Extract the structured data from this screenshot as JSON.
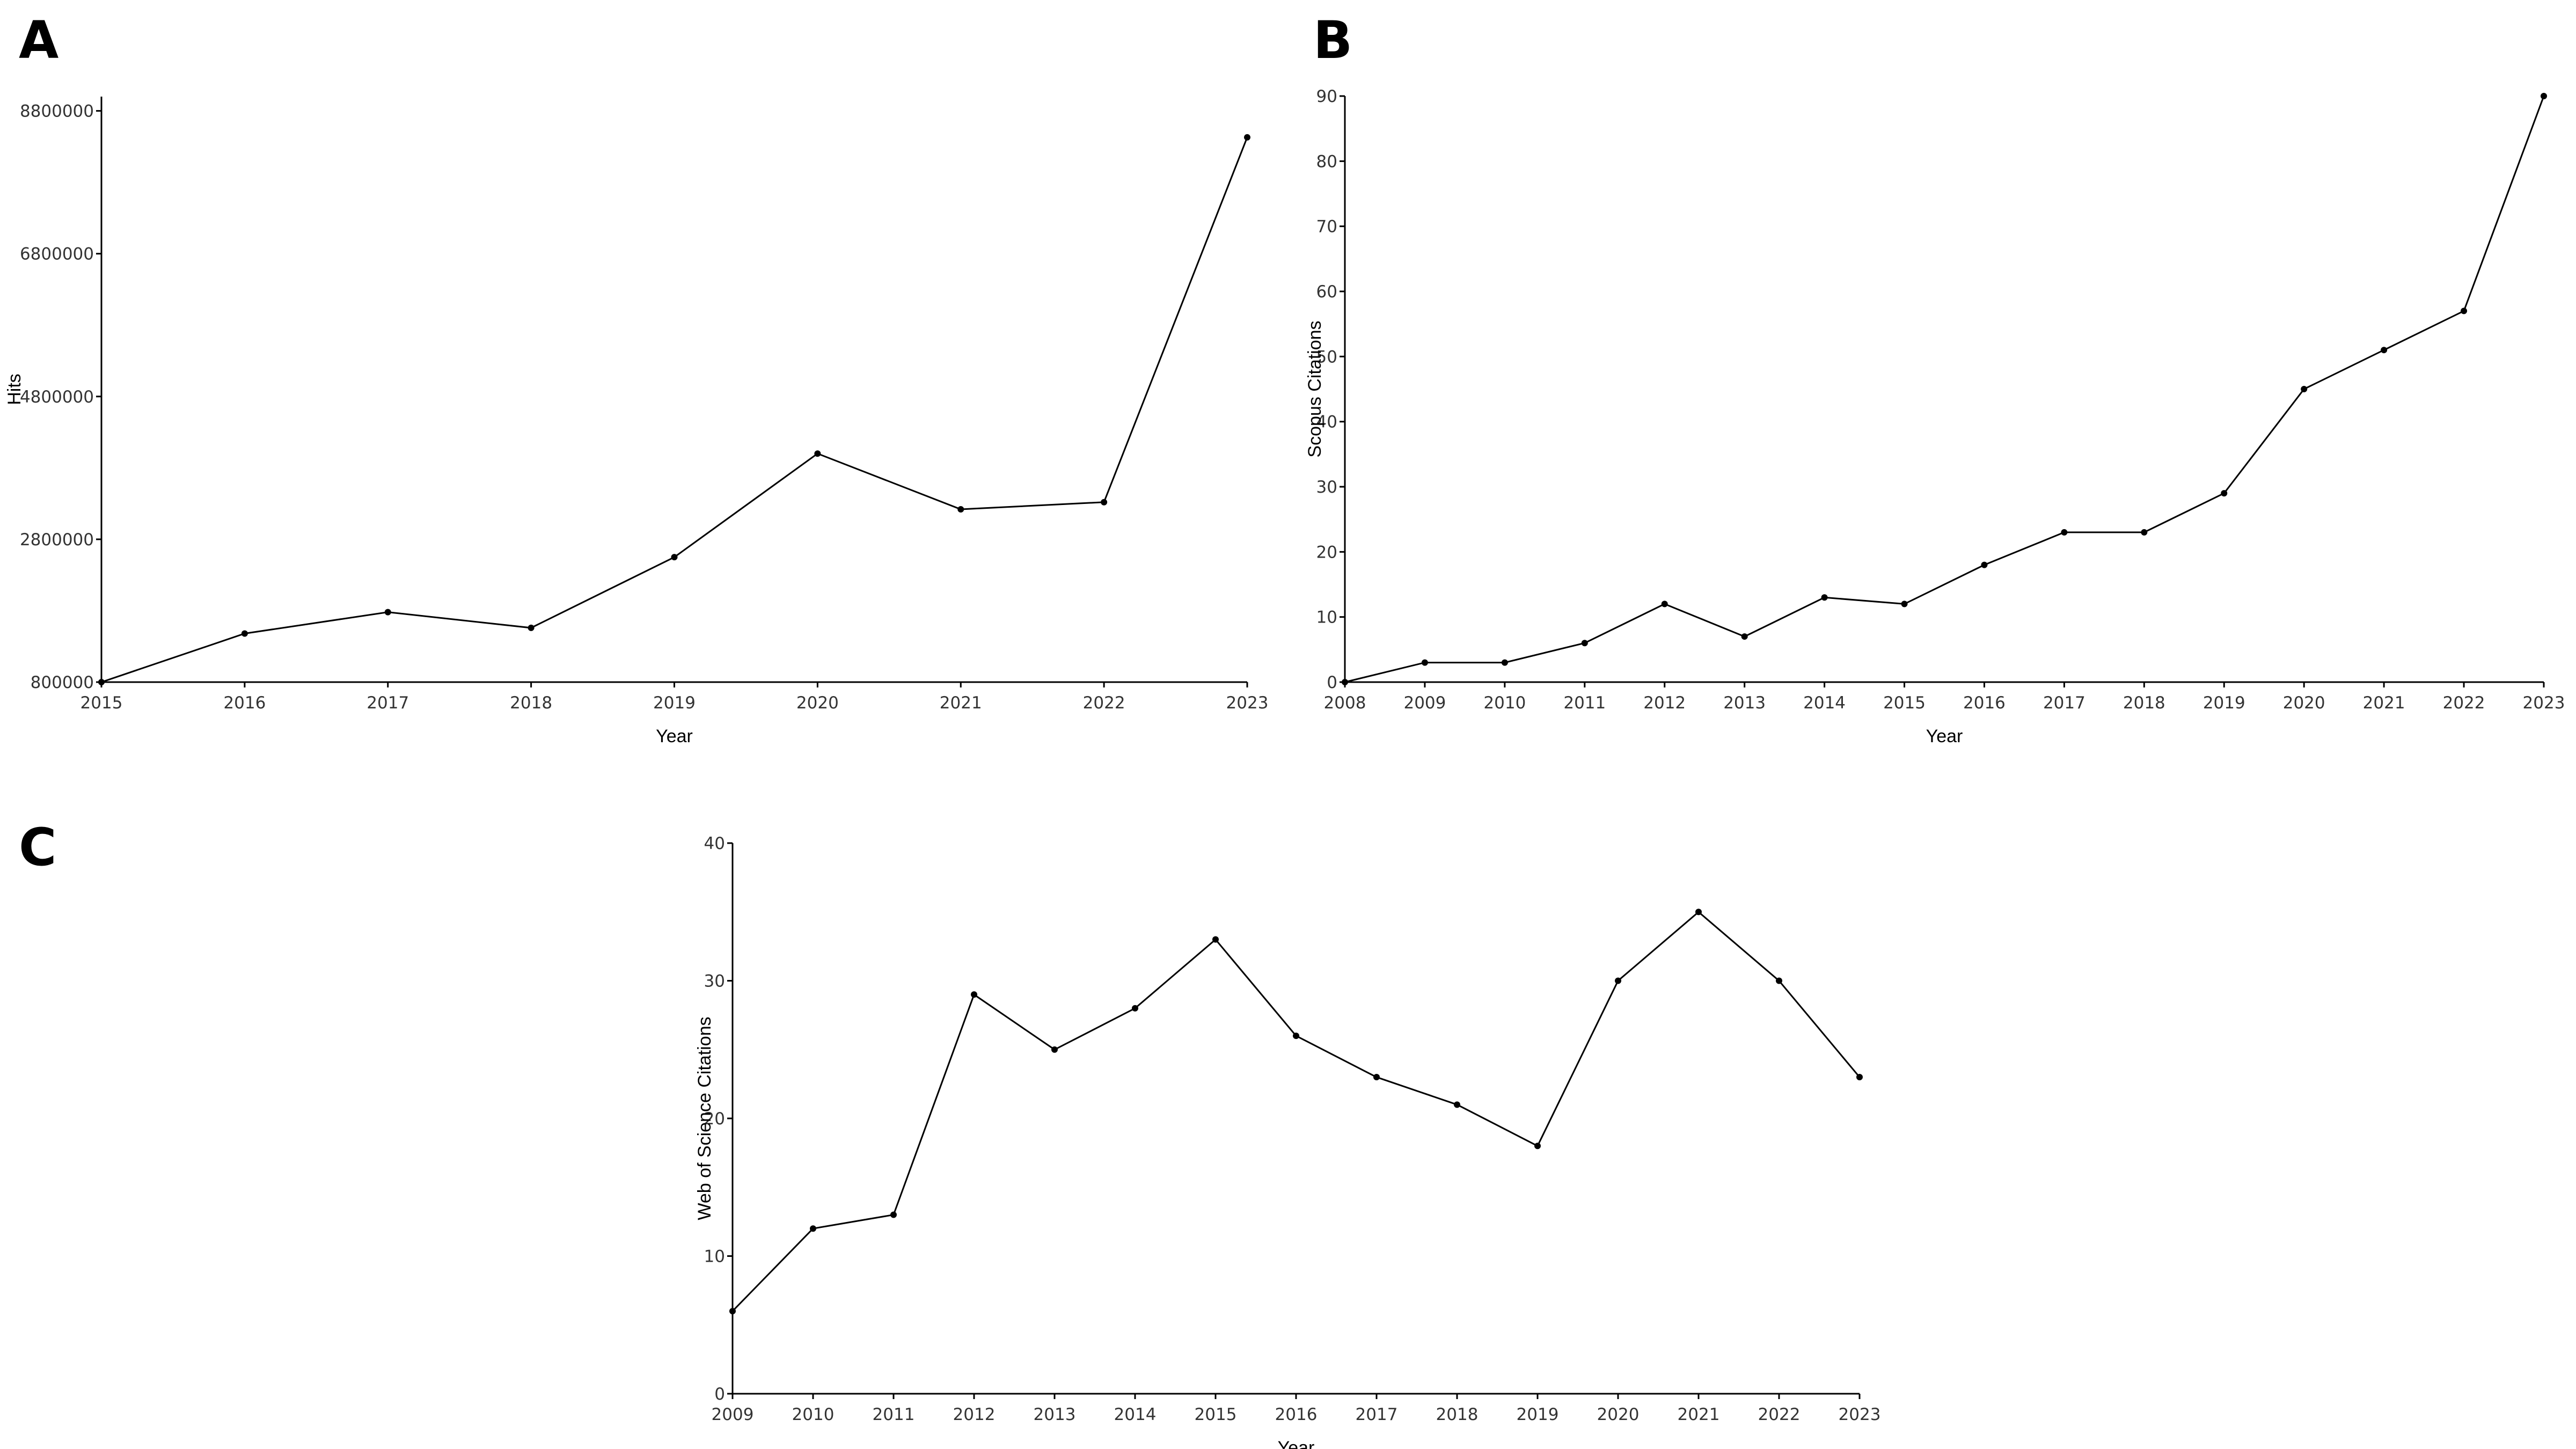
{
  "chart_data": [
    {
      "panel": "A",
      "type": "line",
      "title": "",
      "xlabel": "Year",
      "ylabel": "Hits",
      "x": [
        2015,
        2016,
        2017,
        2018,
        2019,
        2020,
        2021,
        2022,
        2023
      ],
      "xticks": [
        "2015",
        "2016",
        "2017",
        "2018",
        "2019",
        "2020",
        "2021",
        "2022",
        "2023"
      ],
      "xlim": [
        2015,
        2023
      ],
      "y": [
        800000,
        1480000,
        1780000,
        1560000,
        2550000,
        4000000,
        3220000,
        3320000,
        8430000
      ],
      "yticks": [
        "800000",
        "2800000",
        "4800000",
        "6800000",
        "8800000"
      ],
      "ylim": [
        800000,
        9000000
      ],
      "grid": false
    },
    {
      "panel": "B",
      "type": "line",
      "title": "",
      "xlabel": "Year",
      "ylabel": "Scopus Citations",
      "x": [
        2008,
        2009,
        2010,
        2011,
        2012,
        2013,
        2014,
        2015,
        2016,
        2017,
        2018,
        2019,
        2020,
        2021,
        2022,
        2023
      ],
      "xticks": [
        "2008",
        "2009",
        "2010",
        "2011",
        "2012",
        "2013",
        "2014",
        "2015",
        "2016",
        "2017",
        "2018",
        "2019",
        "2020",
        "2021",
        "2022",
        "2023"
      ],
      "xlim": [
        2008,
        2023
      ],
      "y": [
        0,
        3,
        3,
        6,
        12,
        7,
        13,
        12,
        18,
        23,
        23,
        29,
        45,
        51,
        57,
        90
      ],
      "yticks": [
        "0",
        "10",
        "20",
        "30",
        "40",
        "50",
        "60",
        "70",
        "80",
        "90"
      ],
      "ylim": [
        0,
        90
      ],
      "grid": false
    },
    {
      "panel": "C",
      "type": "line",
      "title": "",
      "xlabel": "Year",
      "ylabel": "Web of Science Citations",
      "x": [
        2009,
        2010,
        2011,
        2012,
        2013,
        2014,
        2015,
        2016,
        2017,
        2018,
        2019,
        2020,
        2021,
        2022,
        2023
      ],
      "xticks": [
        "2009",
        "2010",
        "2011",
        "2012",
        "2013",
        "2014",
        "2015",
        "2016",
        "2017",
        "2018",
        "2019",
        "2020",
        "2021",
        "2022",
        "2023"
      ],
      "xlim": [
        2009,
        2023
      ],
      "y": [
        6,
        12,
        13,
        29,
        25,
        28,
        33,
        26,
        23,
        21,
        18,
        30,
        35,
        30,
        23
      ],
      "yticks": [
        "0",
        "10",
        "20",
        "30",
        "40"
      ],
      "ylim": [
        0,
        40
      ],
      "grid": false
    }
  ]
}
